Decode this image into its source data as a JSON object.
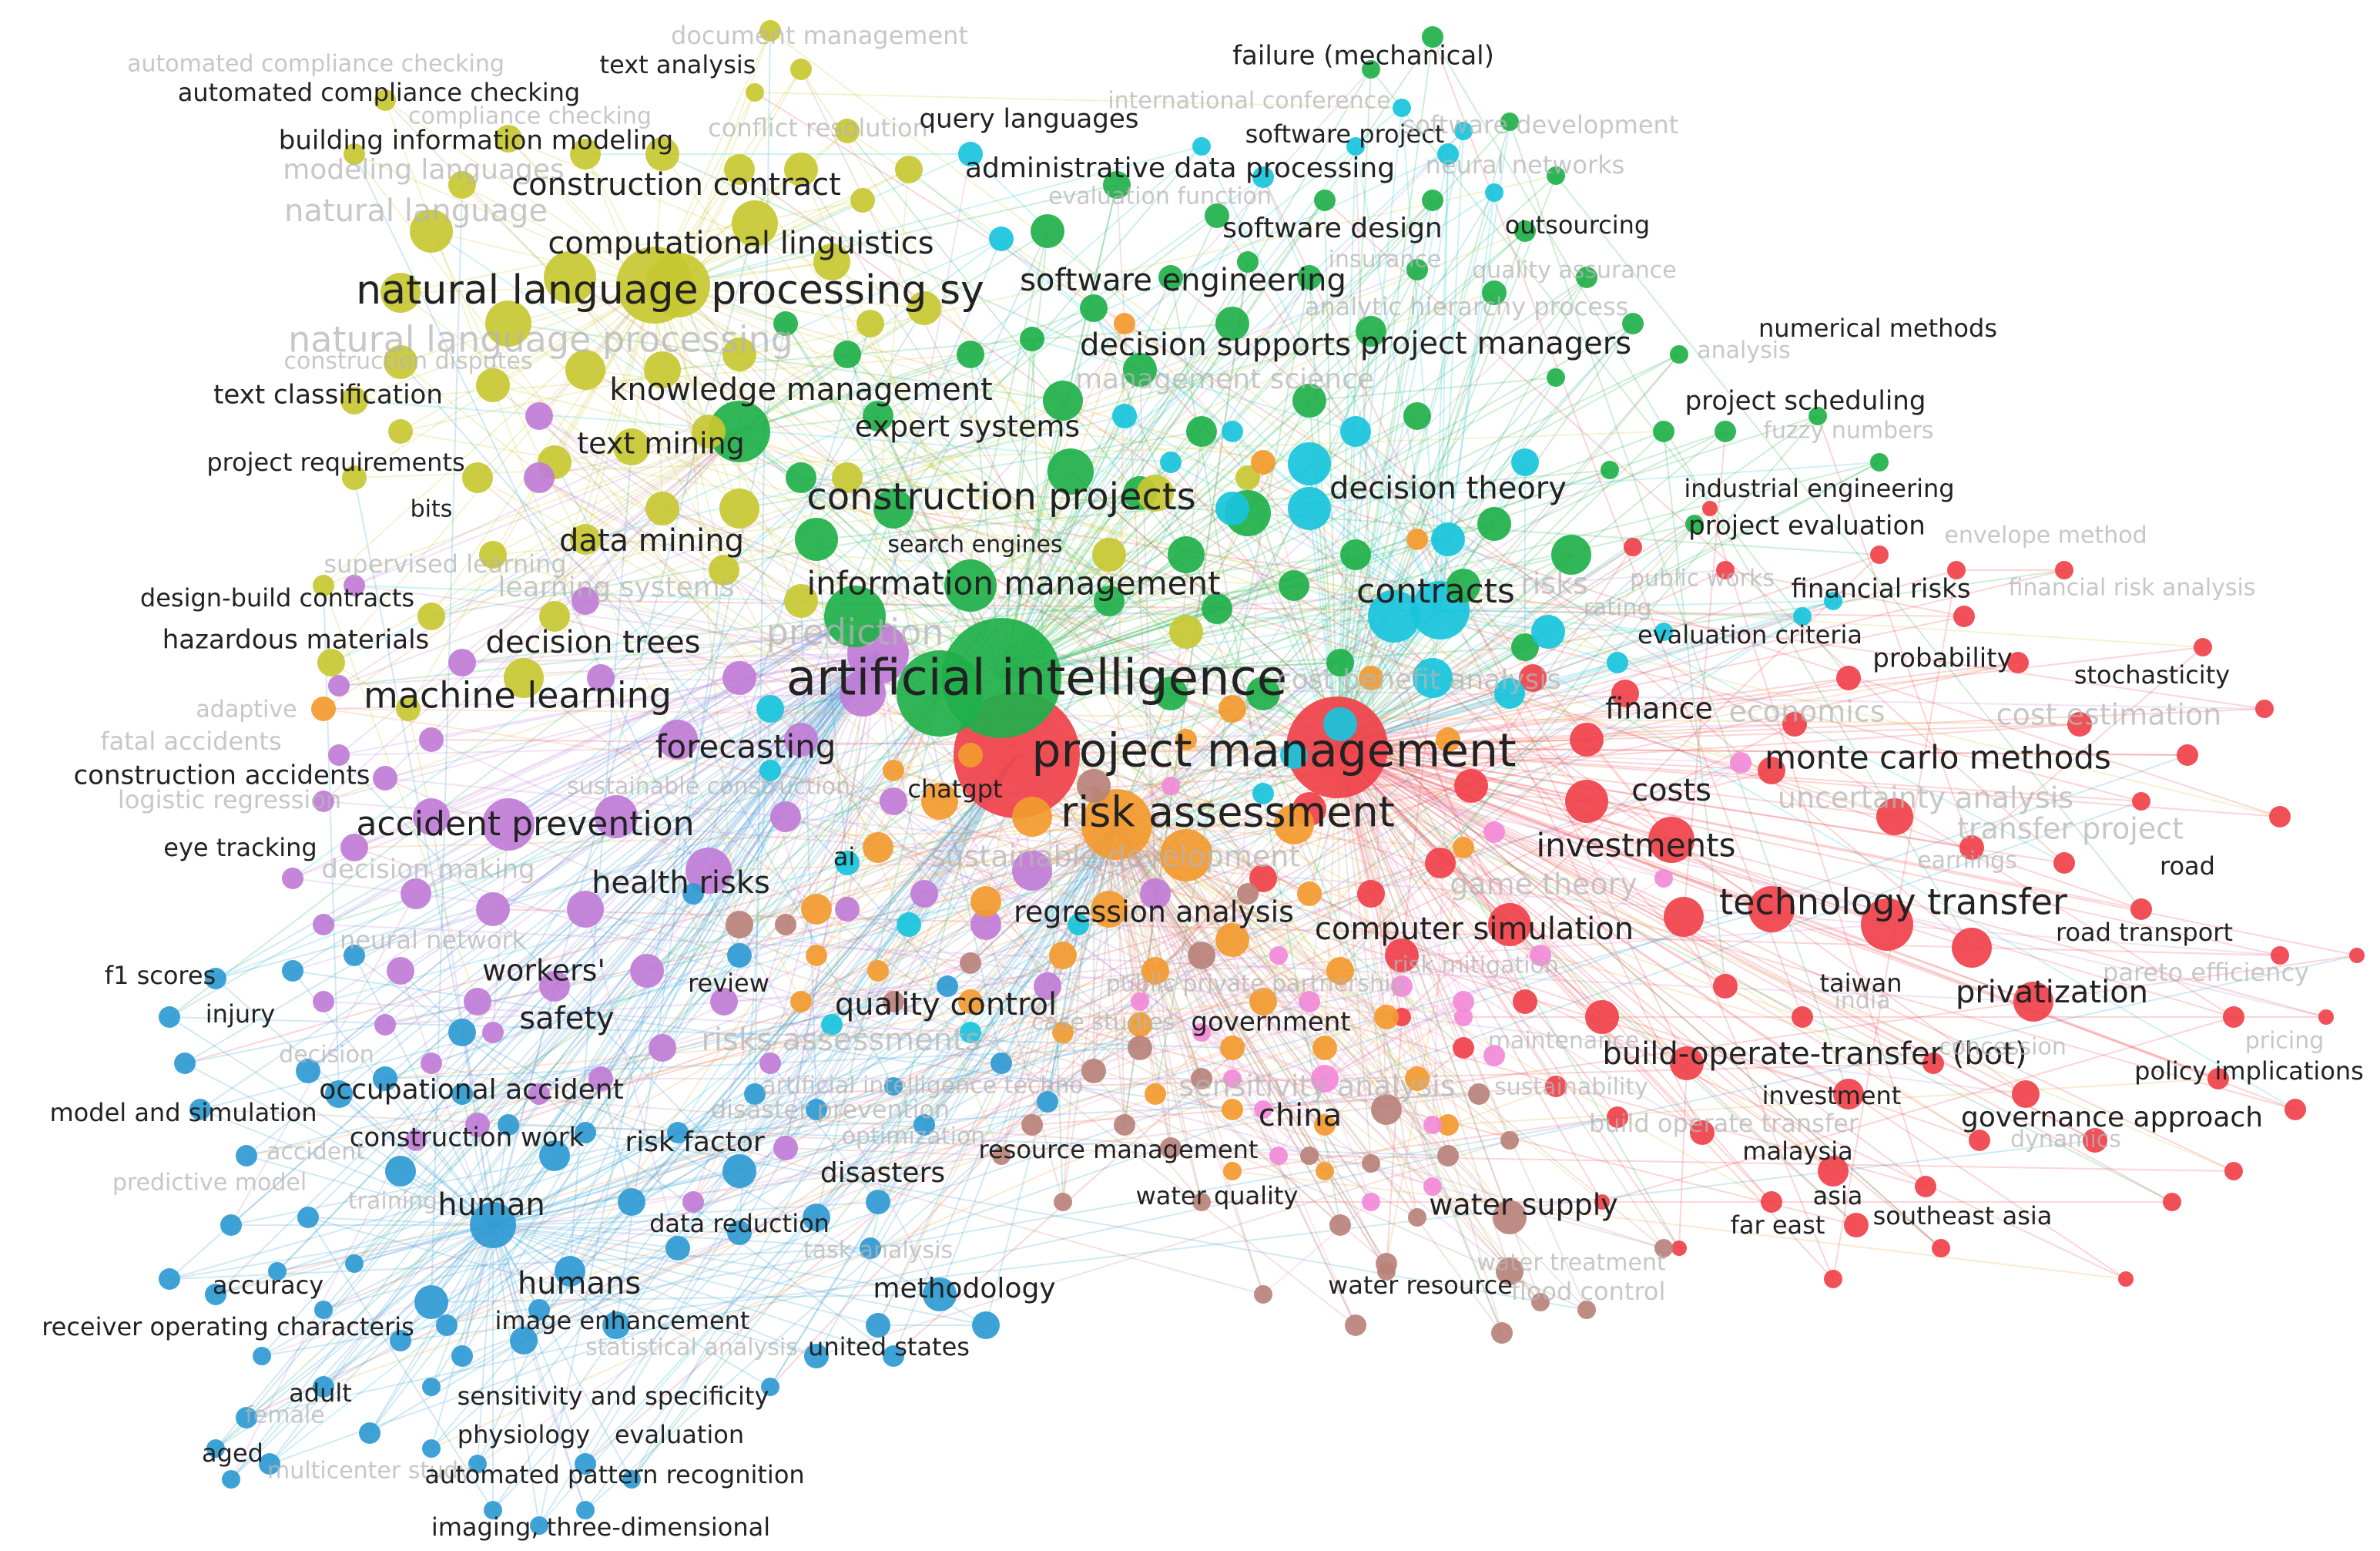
{
  "colors": {
    "red": "#f0414a",
    "green": "#1fb04a",
    "yellow": "#c8c832",
    "cyan": "#18c4dc",
    "purple": "#c07cd6",
    "blue": "#2f9ad2",
    "orange": "#f39a2f",
    "brown": "#b9827a",
    "pink": "#f28ad8",
    "label_dark": "#222222",
    "label_faded": "#b4b4b4"
  },
  "labels": [
    {
      "text": "document management",
      "cluster": "yellow",
      "size": 32,
      "faded": true
    },
    {
      "text": "automated compliance checking",
      "cluster": "yellow",
      "size": 30,
      "faded": true
    },
    {
      "text": "text analysis",
      "cluster": "yellow",
      "size": 32,
      "faded": false
    },
    {
      "text": "automated compliance checking",
      "cluster": "yellow",
      "size": 32,
      "faded": false
    },
    {
      "text": "failure (mechanical)",
      "cluster": "green",
      "size": 34,
      "faded": false
    },
    {
      "text": "international conference",
      "cluster": "cyan",
      "size": 30,
      "faded": true
    },
    {
      "text": "compliance checking",
      "cluster": "yellow",
      "size": 30,
      "faded": true
    },
    {
      "text": "conflict resolution",
      "cluster": "yellow",
      "size": 32,
      "faded": true
    },
    {
      "text": "query languages",
      "cluster": "cyan",
      "size": 34,
      "faded": false
    },
    {
      "text": "software project",
      "cluster": "green",
      "size": 32,
      "faded": false
    },
    {
      "text": "software development",
      "cluster": "green",
      "size": 32,
      "faded": true
    },
    {
      "text": "building information modeling",
      "cluster": "yellow",
      "size": 34,
      "faded": false
    },
    {
      "text": "modeling languages",
      "cluster": "yellow",
      "size": 36,
      "faded": true
    },
    {
      "text": "administrative data processing",
      "cluster": "cyan",
      "size": 36,
      "faded": false
    },
    {
      "text": "neural networks",
      "cluster": "cyan",
      "size": 32,
      "faded": true
    },
    {
      "text": "construction contract",
      "cluster": "yellow",
      "size": 40,
      "faded": false
    },
    {
      "text": "evaluation function",
      "cluster": "green",
      "size": 30,
      "faded": true
    },
    {
      "text": "natural language",
      "cluster": "yellow",
      "size": 40,
      "faded": true
    },
    {
      "text": "computational linguistics",
      "cluster": "yellow",
      "size": 40,
      "faded": false
    },
    {
      "text": "software design",
      "cluster": "green",
      "size": 36,
      "faded": false
    },
    {
      "text": "outsourcing",
      "cluster": "green",
      "size": 32,
      "faded": false
    },
    {
      "text": "insurance",
      "cluster": "green",
      "size": 30,
      "faded": true
    },
    {
      "text": "quality assurance",
      "cluster": "green",
      "size": 30,
      "faded": true
    },
    {
      "text": "natural language processing sy",
      "cluster": "yellow",
      "size": 52,
      "faded": false
    },
    {
      "text": "software engineering",
      "cluster": "green",
      "size": 40,
      "faded": false
    },
    {
      "text": "analytic hierarchy process",
      "cluster": "green",
      "size": 32,
      "faded": true
    },
    {
      "text": "natural language processing",
      "cluster": "yellow",
      "size": 46,
      "faded": true
    },
    {
      "text": "numerical methods",
      "cluster": "green",
      "size": 32,
      "faded": false
    },
    {
      "text": "decision supports",
      "cluster": "green",
      "size": 40,
      "faded": false
    },
    {
      "text": "project managers",
      "cluster": "green",
      "size": 40,
      "faded": false
    },
    {
      "text": "analysis",
      "cluster": "green",
      "size": 30,
      "faded": true
    },
    {
      "text": "construction disputes",
      "cluster": "yellow",
      "size": 30,
      "faded": true
    },
    {
      "text": "text classification",
      "cluster": "yellow",
      "size": 34,
      "faded": false
    },
    {
      "text": "knowledge management",
      "cluster": "yellow",
      "size": 40,
      "faded": false
    },
    {
      "text": "management science",
      "cluster": "green",
      "size": 36,
      "faded": true
    },
    {
      "text": "project scheduling",
      "cluster": "green",
      "size": 34,
      "faded": false
    },
    {
      "text": "expert systems",
      "cluster": "green",
      "size": 38,
      "faded": false
    },
    {
      "text": "text mining",
      "cluster": "yellow",
      "size": 38,
      "faded": false
    },
    {
      "text": "fuzzy numbers",
      "cluster": "green",
      "size": 30,
      "faded": true
    },
    {
      "text": "project requirements",
      "cluster": "purple",
      "size": 32,
      "faded": false
    },
    {
      "text": "construction projects",
      "cluster": "yellow",
      "size": 48,
      "faded": false
    },
    {
      "text": "decision theory",
      "cluster": "cyan",
      "size": 40,
      "faded": false
    },
    {
      "text": "industrial engineering",
      "cluster": "green",
      "size": 32,
      "faded": false
    },
    {
      "text": "bits",
      "cluster": "purple",
      "size": 30,
      "faded": false
    },
    {
      "text": "project evaluation",
      "cluster": "red",
      "size": 34,
      "faded": false
    },
    {
      "text": "data mining",
      "cluster": "yellow",
      "size": 40,
      "faded": false
    },
    {
      "text": "search engines",
      "cluster": "green",
      "size": 30,
      "faded": false
    },
    {
      "text": "envelope method",
      "cluster": "red",
      "size": 30,
      "faded": true
    },
    {
      "text": "supervised learning",
      "cluster": "purple",
      "size": 32,
      "faded": true
    },
    {
      "text": "public works",
      "cluster": "red",
      "size": 30,
      "faded": true
    },
    {
      "text": "information management",
      "cluster": "green",
      "size": 42,
      "faded": false
    },
    {
      "text": "contracts",
      "cluster": "cyan",
      "size": 44,
      "faded": false
    },
    {
      "text": "risks",
      "cluster": "cyan",
      "size": 38,
      "faded": true
    },
    {
      "text": "financial risks",
      "cluster": "red",
      "size": 34,
      "faded": false
    },
    {
      "text": "financial risk analysis",
      "cluster": "red",
      "size": 30,
      "faded": true
    },
    {
      "text": "design-build contracts",
      "cluster": "purple",
      "size": 32,
      "faded": false
    },
    {
      "text": "learning systems",
      "cluster": "purple",
      "size": 36,
      "faded": true
    },
    {
      "text": "rating",
      "cluster": "red",
      "size": 30,
      "faded": true
    },
    {
      "text": "evaluation criteria",
      "cluster": "red",
      "size": 32,
      "faded": false
    },
    {
      "text": "hazardous materials",
      "cluster": "purple",
      "size": 34,
      "faded": false
    },
    {
      "text": "decision trees",
      "cluster": "yellow",
      "size": 40,
      "faded": false
    },
    {
      "text": "prediction",
      "cluster": "purple",
      "size": 46,
      "faded": true
    },
    {
      "text": "probability",
      "cluster": "red",
      "size": 34,
      "faded": false
    },
    {
      "text": "artificial intelligence",
      "cluster": "green",
      "size": 64,
      "faded": false
    },
    {
      "text": "stochasticity",
      "cluster": "red",
      "size": 32,
      "faded": false
    },
    {
      "text": "cost benefit analysis",
      "cluster": "red",
      "size": 36,
      "faded": true
    },
    {
      "text": "machine learning",
      "cluster": "yellow",
      "size": 46,
      "faded": false
    },
    {
      "text": "adaptive",
      "cluster": "purple",
      "size": 30,
      "faded": true
    },
    {
      "text": "finance",
      "cluster": "red",
      "size": 38,
      "faded": false
    },
    {
      "text": "economics",
      "cluster": "red",
      "size": 38,
      "faded": true
    },
    {
      "text": "cost estimation",
      "cluster": "red",
      "size": 38,
      "faded": true
    },
    {
      "text": "fatal accidents",
      "cluster": "purple",
      "size": 32,
      "faded": true
    },
    {
      "text": "forecasting",
      "cluster": "cyan",
      "size": 42,
      "faded": false
    },
    {
      "text": "project management",
      "cluster": "red",
      "size": 60,
      "faded": false
    },
    {
      "text": "monte carlo methods",
      "cluster": "red",
      "size": 42,
      "faded": false
    },
    {
      "text": "construction accidents",
      "cluster": "purple",
      "size": 34,
      "faded": false
    },
    {
      "text": "sustainable construction",
      "cluster": "orange",
      "size": 30,
      "faded": true
    },
    {
      "text": "chatgpt",
      "cluster": "orange",
      "size": 32,
      "faded": false
    },
    {
      "text": "costs",
      "cluster": "red",
      "size": 40,
      "faded": false
    },
    {
      "text": "uncertainty analysis",
      "cluster": "red",
      "size": 38,
      "faded": true
    },
    {
      "text": "logistic regression",
      "cluster": "purple",
      "size": 32,
      "faded": true
    },
    {
      "text": "accident prevention",
      "cluster": "purple",
      "size": 44,
      "faded": false
    },
    {
      "text": "risk assessment",
      "cluster": "orange",
      "size": 54,
      "faded": false
    },
    {
      "text": "transfer project",
      "cluster": "red",
      "size": 38,
      "faded": true
    },
    {
      "text": "eye tracking",
      "cluster": "purple",
      "size": 32,
      "faded": false
    },
    {
      "text": "ai",
      "cluster": "orange",
      "size": 32,
      "faded": false
    },
    {
      "text": "sustainable development",
      "cluster": "orange",
      "size": 38,
      "faded": true
    },
    {
      "text": "investments",
      "cluster": "red",
      "size": 42,
      "faded": false
    },
    {
      "text": "earnings",
      "cluster": "red",
      "size": 30,
      "faded": true
    },
    {
      "text": "road",
      "cluster": "red",
      "size": 32,
      "faded": false
    },
    {
      "text": "decision making",
      "cluster": "purple",
      "size": 34,
      "faded": true
    },
    {
      "text": "game theory",
      "cluster": "red",
      "size": 38,
      "faded": true
    },
    {
      "text": "health risks",
      "cluster": "purple",
      "size": 40,
      "faded": false
    },
    {
      "text": "technology transfer",
      "cluster": "red",
      "size": 46,
      "faded": false
    },
    {
      "text": "regression analysis",
      "cluster": "brown",
      "size": 38,
      "faded": false
    },
    {
      "text": "neural network",
      "cluster": "blue",
      "size": 32,
      "faded": true
    },
    {
      "text": "computer simulation",
      "cluster": "red",
      "size": 40,
      "faded": false
    },
    {
      "text": "road transport",
      "cluster": "red",
      "size": 32,
      "faded": false
    },
    {
      "text": "f1 scores",
      "cluster": "blue",
      "size": 32,
      "faded": false
    },
    {
      "text": "workers'",
      "cluster": "purple",
      "size": 38,
      "faded": false
    },
    {
      "text": "risk mitigation",
      "cluster": "red",
      "size": 30,
      "faded": true
    },
    {
      "text": "pareto efficiency",
      "cluster": "red",
      "size": 32,
      "faded": true
    },
    {
      "text": "review",
      "cluster": "orange",
      "size": 32,
      "faded": false
    },
    {
      "text": "taiwan",
      "cluster": "red",
      "size": 32,
      "faded": false
    },
    {
      "text": "public private partnership",
      "cluster": "pink",
      "size": 30,
      "faded": true
    },
    {
      "text": "privatization",
      "cluster": "red",
      "size": 40,
      "faded": false
    },
    {
      "text": "india",
      "cluster": "red",
      "size": 30,
      "faded": true
    },
    {
      "text": "quality control",
      "cluster": "cyan",
      "size": 40,
      "faded": false
    },
    {
      "text": "injury",
      "cluster": "blue",
      "size": 32,
      "faded": false
    },
    {
      "text": "safety",
      "cluster": "purple",
      "size": 40,
      "faded": false
    },
    {
      "text": "case studies",
      "cluster": "brown",
      "size": 30,
      "faded": true
    },
    {
      "text": "government",
      "cluster": "red",
      "size": 34,
      "faded": false
    },
    {
      "text": "maintenance",
      "cluster": "pink",
      "size": 30,
      "faded": true
    },
    {
      "text": "pricing",
      "cluster": "red",
      "size": 30,
      "faded": true
    },
    {
      "text": "risks assessments",
      "cluster": "brown",
      "size": 40,
      "faded": true
    },
    {
      "text": "build-operate-transfer (bot)",
      "cluster": "red",
      "size": 40,
      "faded": false
    },
    {
      "text": "concession",
      "cluster": "red",
      "size": 30,
      "faded": true
    },
    {
      "text": "decision",
      "cluster": "blue",
      "size": 30,
      "faded": true
    },
    {
      "text": "policy implications",
      "cluster": "red",
      "size": 32,
      "faded": false
    },
    {
      "text": "artificial intelligence techno",
      "cluster": "orange",
      "size": 30,
      "faded": true
    },
    {
      "text": "sensitivity analysis",
      "cluster": "pink",
      "size": 38,
      "faded": true
    },
    {
      "text": "sustainability",
      "cluster": "red",
      "size": 30,
      "faded": true
    },
    {
      "text": "occupational accident",
      "cluster": "blue",
      "size": 36,
      "faded": false
    },
    {
      "text": "investment",
      "cluster": "red",
      "size": 32,
      "faded": false
    },
    {
      "text": "model and simulation",
      "cluster": "blue",
      "size": 32,
      "faded": false
    },
    {
      "text": "disaster prevention",
      "cluster": "brown",
      "size": 32,
      "faded": true
    },
    {
      "text": "build operate transfer",
      "cluster": "red",
      "size": 32,
      "faded": true
    },
    {
      "text": "governance approach",
      "cluster": "red",
      "size": 36,
      "faded": false
    },
    {
      "text": "china",
      "cluster": "brown",
      "size": 40,
      "faded": false
    },
    {
      "text": "optimization",
      "cluster": "orange",
      "size": 30,
      "faded": true
    },
    {
      "text": "dynamics",
      "cluster": "red",
      "size": 30,
      "faded": true
    },
    {
      "text": "construction work",
      "cluster": "blue",
      "size": 34,
      "faded": false
    },
    {
      "text": "risk factor",
      "cluster": "blue",
      "size": 36,
      "faded": false
    },
    {
      "text": "accident",
      "cluster": "blue",
      "size": 30,
      "faded": true
    },
    {
      "text": "resource management",
      "cluster": "brown",
      "size": 32,
      "faded": false
    },
    {
      "text": "malaysia",
      "cluster": "red",
      "size": 32,
      "faded": false
    },
    {
      "text": "disasters",
      "cluster": "blue",
      "size": 36,
      "faded": false
    },
    {
      "text": "predictive model",
      "cluster": "blue",
      "size": 30,
      "faded": true
    },
    {
      "text": "water quality",
      "cluster": "brown",
      "size": 32,
      "faded": false
    },
    {
      "text": "asia",
      "cluster": "red",
      "size": 32,
      "faded": false
    },
    {
      "text": "training",
      "cluster": "blue",
      "size": 30,
      "faded": true
    },
    {
      "text": "human",
      "cluster": "blue",
      "size": 40,
      "faded": false
    },
    {
      "text": "water supply",
      "cluster": "brown",
      "size": 38,
      "faded": false
    },
    {
      "text": "data reduction",
      "cluster": "blue",
      "size": 32,
      "faded": false
    },
    {
      "text": "far east",
      "cluster": "red",
      "size": 32,
      "faded": false
    },
    {
      "text": "southeast asia",
      "cluster": "red",
      "size": 32,
      "faded": false
    },
    {
      "text": "task analysis",
      "cluster": "blue",
      "size": 30,
      "faded": true
    },
    {
      "text": "water treatment",
      "cluster": "brown",
      "size": 30,
      "faded": true
    },
    {
      "text": "accuracy",
      "cluster": "blue",
      "size": 32,
      "faded": false
    },
    {
      "text": "humans",
      "cluster": "blue",
      "size": 40,
      "faded": false
    },
    {
      "text": "methodology",
      "cluster": "blue",
      "size": 36,
      "faded": false
    },
    {
      "text": "water resource",
      "cluster": "brown",
      "size": 32,
      "faded": false
    },
    {
      "text": "flood control",
      "cluster": "brown",
      "size": 32,
      "faded": true
    },
    {
      "text": "receiver operating characteris",
      "cluster": "blue",
      "size": 32,
      "faded": false
    },
    {
      "text": "image enhancement",
      "cluster": "blue",
      "size": 32,
      "faded": false
    },
    {
      "text": "statistical analysis",
      "cluster": "blue",
      "size": 30,
      "faded": true
    },
    {
      "text": "united states",
      "cluster": "blue",
      "size": 32,
      "faded": false
    },
    {
      "text": "adult",
      "cluster": "blue",
      "size": 32,
      "faded": false
    },
    {
      "text": "sensitivity and specificity",
      "cluster": "blue",
      "size": 32,
      "faded": false
    },
    {
      "text": "female",
      "cluster": "blue",
      "size": 30,
      "faded": true
    },
    {
      "text": "physiology",
      "cluster": "blue",
      "size": 32,
      "faded": false
    },
    {
      "text": "evaluation",
      "cluster": "blue",
      "size": 32,
      "faded": false
    },
    {
      "text": "aged",
      "cluster": "blue",
      "size": 32,
      "faded": false
    },
    {
      "text": "multicenter study",
      "cluster": "blue",
      "size": 30,
      "faded": true
    },
    {
      "text": "automated pattern recognition",
      "cluster": "blue",
      "size": 32,
      "faded": false
    },
    {
      "text": "imaging, three-dimensional",
      "cluster": "blue",
      "size": 32,
      "faded": false
    }
  ]
}
